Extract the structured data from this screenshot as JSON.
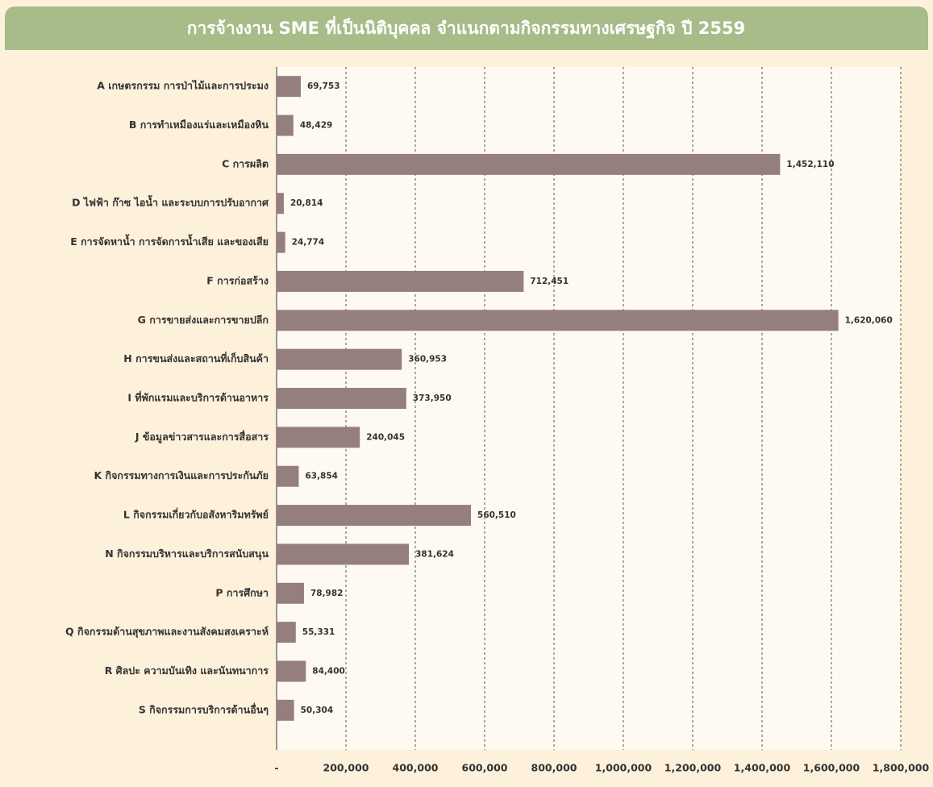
{
  "chart_data": {
    "type": "bar",
    "orientation": "horizontal",
    "title": "การจ้างงาน SME ที่เป็นนิติบุคคล จำแนกตามกิจกรรมทางเศรษฐกิจ ปี 2559",
    "categories": [
      "A เกษตรกรรม การป่าไม้และการประมง",
      "B การทำเหมืองแร่และเหมืองหิน",
      "C การผลิต",
      "D ไฟฟ้า ก๊าซ ไอน้ำ และระบบการปรับอากาศ",
      "E การจัดหาน้ำ การจัดการน้ำเสีย และของเสีย",
      "F การก่อสร้าง",
      "G การขายส่งและการขายปลีก",
      "H การขนส่งและสถานที่เก็บสินค้า",
      "I ที่พักแรมและบริการด้านอาหาร",
      "J ข้อมูลข่าวสารและการสื่อสาร",
      "K กิจกรรมทางการเงินและการประกันภัย",
      "L กิจกรรมเกี่ยวกับอสังหาริมทรัพย์",
      "N กิจกรรมบริหารและบริการสนับสนุน",
      "P การศึกษา",
      "Q กิจกรรมด้านสุขภาพและงานสังคมสงเคราะห์",
      "R ศิลปะ ความบันเทิง และนันทนาการ",
      "S กิจกรรมการบริการด้านอื่นๆ"
    ],
    "values": [
      69753,
      48429,
      1452110,
      20814,
      24774,
      712451,
      1620060,
      360953,
      373950,
      240045,
      63854,
      560510,
      381624,
      78982,
      55331,
      84400,
      50304
    ],
    "value_labels": [
      "69,753",
      "48,429",
      "1,452,110",
      "20,814",
      "24,774",
      "712,451",
      "1,620,060",
      "360,953",
      "373,950",
      "240,045",
      "63,854",
      "560,510",
      "381,624",
      "78,982",
      "55,331",
      "84,400",
      "50,304"
    ],
    "color": "#957f7e",
    "xlim": [
      0,
      1800000
    ],
    "xticks": [
      {
        "value": 0,
        "label": "-"
      },
      {
        "value": 200000,
        "label": "200,000"
      },
      {
        "value": 400000,
        "label": "400,000"
      },
      {
        "value": 600000,
        "label": "600,000"
      },
      {
        "value": 800000,
        "label": "800,000"
      },
      {
        "value": 1000000,
        "label": "1,000,000"
      },
      {
        "value": 1200000,
        "label": "1,200,000"
      },
      {
        "value": 1400000,
        "label": "1,400,000"
      },
      {
        "value": 1600000,
        "label": "1,600,000"
      },
      {
        "value": 1800000,
        "label": "1,800,000"
      }
    ],
    "grid": true
  }
}
